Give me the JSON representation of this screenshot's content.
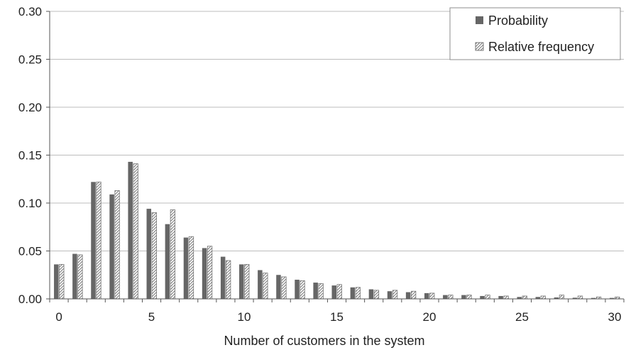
{
  "chart_data": {
    "type": "bar",
    "xlabel": "Number of customers in the system",
    "ylabel": "",
    "ylim": [
      0,
      0.3
    ],
    "yticks": [
      "0.00",
      "0.05",
      "0.10",
      "0.15",
      "0.20",
      "0.25",
      "0.30"
    ],
    "xticks": [
      "0",
      "5",
      "10",
      "15",
      "20",
      "25",
      "30"
    ],
    "grid": "horizontal",
    "legend_position": "top-right",
    "categories": [
      0,
      1,
      2,
      3,
      4,
      5,
      6,
      7,
      8,
      9,
      10,
      11,
      12,
      13,
      14,
      15,
      16,
      17,
      18,
      19,
      20,
      21,
      22,
      23,
      24,
      25,
      26,
      27,
      28,
      29,
      30
    ],
    "series": [
      {
        "name": "Probability",
        "color": "#666666",
        "pattern": "solid",
        "values": [
          0.036,
          0.047,
          0.122,
          0.109,
          0.143,
          0.094,
          0.078,
          0.064,
          0.053,
          0.044,
          0.036,
          0.03,
          0.025,
          0.02,
          0.017,
          0.014,
          0.012,
          0.01,
          0.008,
          0.007,
          0.006,
          0.004,
          0.004,
          0.003,
          0.003,
          0.002,
          0.002,
          0.0015,
          0.0012,
          0.001,
          0.001
        ]
      },
      {
        "name": "Relative frequency",
        "color": "#8a8a8a",
        "pattern": "hatched",
        "values": [
          0.036,
          0.046,
          0.122,
          0.113,
          0.141,
          0.09,
          0.093,
          0.065,
          0.055,
          0.04,
          0.036,
          0.027,
          0.023,
          0.019,
          0.016,
          0.015,
          0.012,
          0.009,
          0.009,
          0.008,
          0.006,
          0.004,
          0.004,
          0.004,
          0.003,
          0.003,
          0.003,
          0.004,
          0.003,
          0.002,
          0.002
        ]
      }
    ]
  },
  "legend": {
    "items": [
      {
        "label": "Probability"
      },
      {
        "label": "Relative frequency"
      }
    ]
  }
}
